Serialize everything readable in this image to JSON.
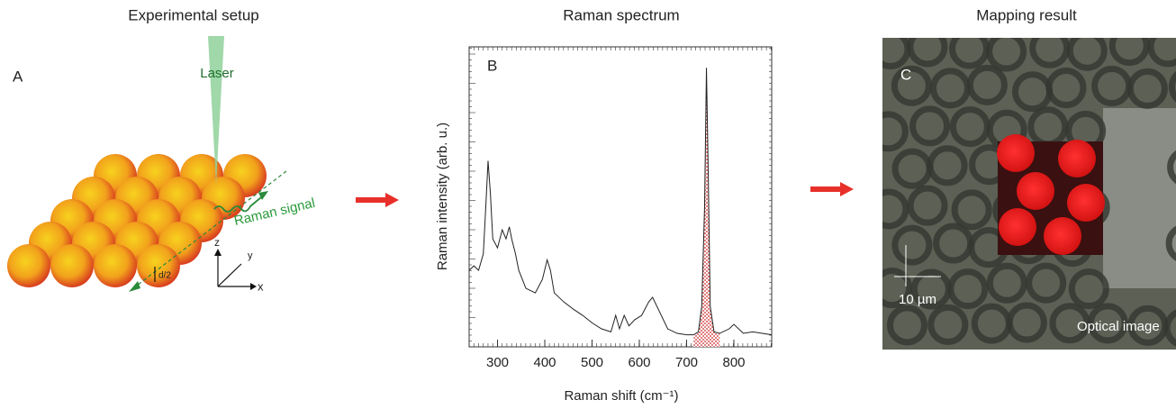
{
  "setup": {
    "title": "Experimental setup",
    "panel_label": "A",
    "laser": "Laser",
    "raman_signal": "Raman signal",
    "axis_z": "z",
    "axis_y": "y",
    "axis_x": "x",
    "spacing": "d/2"
  },
  "chart_data": {
    "type": "line",
    "title": "Raman spectrum",
    "panel_label": "B",
    "x_label": "Raman shift (cm⁻¹)",
    "y_label": "Raman intensity (arb. u.)",
    "x": [
      240,
      250,
      260,
      270,
      275,
      280,
      285,
      290,
      300,
      310,
      318,
      325,
      330,
      338,
      345,
      360,
      380,
      395,
      405,
      412,
      420,
      440,
      460,
      480,
      500,
      520,
      540,
      550,
      558,
      568,
      578,
      590,
      605,
      620,
      628,
      640,
      660,
      680,
      700,
      715,
      725,
      732,
      738,
      742,
      746,
      750,
      758,
      770,
      790,
      800,
      820,
      840,
      860,
      880
    ],
    "values": [
      25.5,
      27,
      25.5,
      31,
      46,
      62,
      51,
      36,
      33,
      39,
      36,
      40,
      36,
      31,
      25.5,
      19.5,
      18,
      22.5,
      29,
      25.5,
      18,
      15,
      12.6,
      10.5,
      8,
      6,
      5,
      10.5,
      6,
      10.5,
      7,
      9,
      10.5,
      15,
      16.5,
      12.6,
      6,
      4.5,
      4,
      4,
      5,
      13.5,
      46.5,
      93,
      55.5,
      13.5,
      5,
      4.5,
      6,
      7.5,
      4.5,
      5,
      4.5,
      4
    ],
    "color": "#222222",
    "highlight_color": "#cc2222",
    "xlim": [
      240,
      880
    ],
    "ylim": [
      0,
      100
    ],
    "xticks": [
      300,
      400,
      500,
      600,
      700,
      800
    ]
  },
  "mapping": {
    "title": "Mapping result",
    "panel_label": "C",
    "scale_bar": "10 µm",
    "image_label": "Optical image"
  }
}
